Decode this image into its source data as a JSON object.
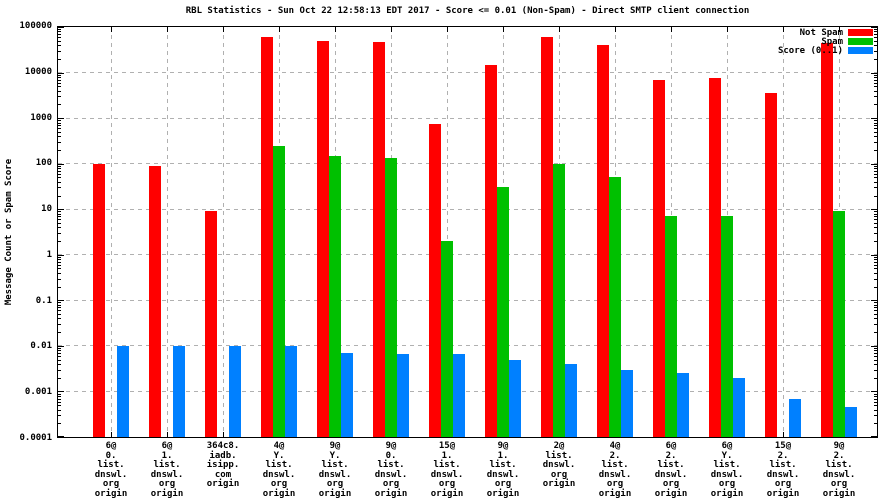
{
  "title": "RBL Statistics - Sun Oct 22 12:58:13 EDT 2017 - Score <= 0.01 (Non-Spam) - Direct SMTP client connection",
  "y_axis": {
    "label": "Message Count or Spam Score",
    "ticks": [
      "100000",
      "10000",
      "1000",
      "100",
      "10",
      "1",
      "0.1",
      "0.01",
      "0.001",
      "0.0001"
    ],
    "scale": "log",
    "min": 0.0001,
    "max": 100000
  },
  "legend": {
    "position": "top-right-inside",
    "entries": [
      {
        "label": "Not Spam",
        "color": "#ff0000"
      },
      {
        "label": "Spam",
        "color": "#00c000"
      },
      {
        "label": "Score (0..1)",
        "color": "#0080ff"
      }
    ]
  },
  "chart_data": {
    "type": "bar",
    "title": "RBL Statistics - Sun Oct 22 12:58:13 EDT 2017 - Score <= 0.01 (Non-Spam) - Direct SMTP client connection",
    "xlabel": "",
    "ylabel": "Message Count or Spam Score",
    "y_scale": "log",
    "ylim": [
      0.0001,
      100000
    ],
    "grid": true,
    "legend_position": "top-right",
    "categories": [
      [
        "6@",
        "0.",
        "list.",
        "dnswl.",
        "org",
        "origin"
      ],
      [
        "6@",
        "1.",
        "list.",
        "dnswl.",
        "org",
        "origin"
      ],
      [
        "364c8.",
        "iadb.",
        "isipp.",
        "com",
        "origin"
      ],
      [
        "4@",
        "Y.",
        "list.",
        "dnswl.",
        "org",
        "origin"
      ],
      [
        "9@",
        "Y.",
        "list.",
        "dnswl.",
        "org",
        "origin"
      ],
      [
        "9@",
        "0.",
        "list.",
        "dnswl.",
        "org",
        "origin"
      ],
      [
        "15@",
        "1.",
        "list.",
        "dnswl.",
        "org",
        "origin"
      ],
      [
        "9@",
        "1.",
        "list.",
        "dnswl.",
        "org",
        "origin"
      ],
      [
        "2@",
        "list.",
        "dnswl.",
        "org",
        "origin"
      ],
      [
        "4@",
        "2.",
        "list.",
        "dnswl.",
        "org",
        "origin"
      ],
      [
        "6@",
        "2.",
        "list.",
        "dnswl.",
        "org",
        "origin"
      ],
      [
        "6@",
        "Y.",
        "list.",
        "dnswl.",
        "org",
        "origin"
      ],
      [
        "15@",
        "2.",
        "list.",
        "dnswl.",
        "org",
        "origin"
      ],
      [
        "9@",
        "2.",
        "list.",
        "dnswl.",
        "org",
        "origin"
      ]
    ],
    "series": [
      {
        "name": "Not Spam",
        "color": "#ff0000",
        "values": [
          100,
          90,
          9,
          60000,
          50000,
          48000,
          750,
          15000,
          60000,
          40000,
          7000,
          7500,
          3500,
          45000
        ]
      },
      {
        "name": "Spam",
        "color": "#00c000",
        "values": [
          null,
          null,
          null,
          250,
          150,
          130,
          2,
          30,
          100,
          50,
          7,
          7,
          null,
          9
        ]
      },
      {
        "name": "Score (0..1)",
        "color": "#0080ff",
        "values": [
          0.01,
          0.01,
          0.01,
          0.01,
          0.007,
          0.0065,
          0.0065,
          0.005,
          0.004,
          0.003,
          0.0025,
          0.002,
          0.0007,
          0.00045
        ]
      }
    ]
  }
}
